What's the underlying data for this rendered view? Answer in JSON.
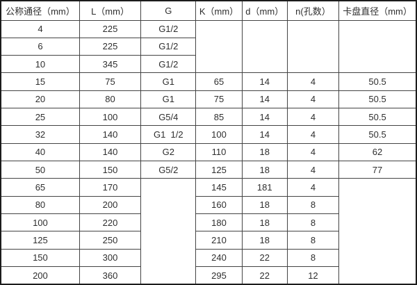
{
  "table": {
    "columns": [
      "公称通径（mm）",
      "L（mm）",
      "G",
      "K（mm）",
      "d（mm）",
      "n(孔数）",
      "卡盘直径（mm）"
    ],
    "rows": [
      {
        "cells": [
          {
            "text": "4"
          },
          {
            "text": "225"
          },
          {
            "text": "G1/2"
          },
          {
            "text": "",
            "rowspan": 3
          },
          {
            "text": "",
            "rowspan": 3
          },
          {
            "text": "",
            "rowspan": 3
          },
          {
            "text": "",
            "rowspan": 3
          }
        ]
      },
      {
        "cells": [
          {
            "text": "6"
          },
          {
            "text": "225"
          },
          {
            "text": "G1/2"
          }
        ]
      },
      {
        "cells": [
          {
            "text": "10"
          },
          {
            "text": "345"
          },
          {
            "text": "G1/2"
          }
        ]
      },
      {
        "cells": [
          {
            "text": "15"
          },
          {
            "text": "75"
          },
          {
            "text": "G1"
          },
          {
            "text": "65"
          },
          {
            "text": "14"
          },
          {
            "text": "4"
          },
          {
            "text": "50.5"
          }
        ]
      },
      {
        "cells": [
          {
            "text": "20"
          },
          {
            "text": "80"
          },
          {
            "text": "G1"
          },
          {
            "text": "75"
          },
          {
            "text": "14"
          },
          {
            "text": "4"
          },
          {
            "text": "50.5"
          }
        ]
      },
      {
        "cells": [
          {
            "text": "25"
          },
          {
            "text": "100"
          },
          {
            "text": "G5/4"
          },
          {
            "text": "85"
          },
          {
            "text": "14"
          },
          {
            "text": "4"
          },
          {
            "text": "50.5"
          }
        ]
      },
      {
        "cells": [
          {
            "text": "32"
          },
          {
            "text": "140"
          },
          {
            "text": "G1  1/2"
          },
          {
            "text": "100"
          },
          {
            "text": "14"
          },
          {
            "text": "4"
          },
          {
            "text": "50.5"
          }
        ]
      },
      {
        "cells": [
          {
            "text": "40"
          },
          {
            "text": "140"
          },
          {
            "text": "G2"
          },
          {
            "text": "110"
          },
          {
            "text": "18"
          },
          {
            "text": "4"
          },
          {
            "text": "62"
          }
        ]
      },
      {
        "cells": [
          {
            "text": "50"
          },
          {
            "text": "150"
          },
          {
            "text": "G5/2"
          },
          {
            "text": "125"
          },
          {
            "text": "18"
          },
          {
            "text": "4"
          },
          {
            "text": "77"
          }
        ]
      },
      {
        "cells": [
          {
            "text": "65"
          },
          {
            "text": "170"
          },
          {
            "text": "",
            "rowspan": 6
          },
          {
            "text": "145"
          },
          {
            "text": "181"
          },
          {
            "text": "4"
          },
          {
            "text": "",
            "rowspan": 6
          }
        ]
      },
      {
        "cells": [
          {
            "text": "80"
          },
          {
            "text": "200"
          },
          {
            "text": "160"
          },
          {
            "text": "18"
          },
          {
            "text": "8"
          }
        ]
      },
      {
        "cells": [
          {
            "text": "100"
          },
          {
            "text": "220"
          },
          {
            "text": "180"
          },
          {
            "text": "18"
          },
          {
            "text": "8"
          }
        ]
      },
      {
        "cells": [
          {
            "text": "125"
          },
          {
            "text": "250"
          },
          {
            "text": "210"
          },
          {
            "text": "18"
          },
          {
            "text": "8"
          }
        ]
      },
      {
        "cells": [
          {
            "text": "150"
          },
          {
            "text": "300"
          },
          {
            "text": "240"
          },
          {
            "text": "22"
          },
          {
            "text": "8"
          }
        ]
      },
      {
        "cells": [
          {
            "text": "200"
          },
          {
            "text": "360"
          },
          {
            "text": "295"
          },
          {
            "text": "22"
          },
          {
            "text": "12"
          }
        ]
      }
    ]
  }
}
